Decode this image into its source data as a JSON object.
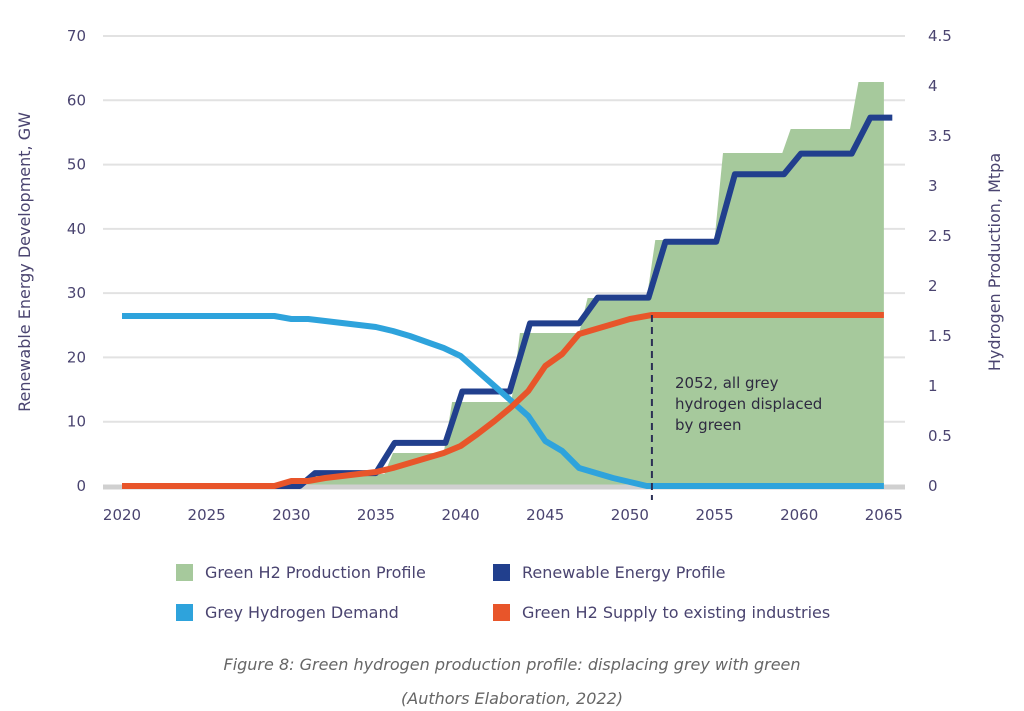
{
  "chart_data": {
    "type": "line",
    "left_axis": {
      "label": "Renewable Energy Development, GW",
      "range": [
        0,
        70
      ],
      "ticks": [
        0,
        10,
        20,
        30,
        40,
        50,
        60,
        70
      ]
    },
    "right_axis": {
      "label": "Hydrogen Production, Mtpa",
      "range": [
        0,
        4.5
      ],
      "ticks": [
        "0",
        "0.5",
        "1",
        "1.5",
        "2",
        "2.5",
        "3",
        "3.5",
        "4",
        "4.5"
      ]
    },
    "x_axis": {
      "ticks": [
        2020,
        2025,
        2030,
        2035,
        2040,
        2045,
        2050,
        2055,
        2060,
        2065
      ]
    },
    "grid": true,
    "legend_position": "bottom",
    "series": [
      {
        "name": "Green H2 Production Profile",
        "type": "area",
        "axis": "right",
        "color": "#a6c99c",
        "x": [
          2020,
          2030,
          2031,
          2031.5,
          2035.5,
          2036,
          2039,
          2039.5,
          2043,
          2043.5,
          2047,
          2047.5,
          2051,
          2051.5,
          2055,
          2055.5,
          2059,
          2059.5,
          2063,
          2063.5,
          2065
        ],
        "y": [
          0,
          0,
          0.05,
          0.12,
          0.12,
          0.33,
          0.33,
          0.84,
          0.84,
          1.53,
          1.53,
          1.88,
          1.88,
          2.46,
          2.46,
          3.33,
          3.33,
          3.57,
          3.57,
          4.04,
          4.04
        ]
      },
      {
        "name": "Renewable Energy Profile",
        "type": "line",
        "axis": "left",
        "color": "#213f8d",
        "x": [
          2020,
          2030.5,
          2031.4,
          2035,
          2036.1,
          2039.1,
          2040.1,
          2042.9,
          2044.1,
          2047,
          2048.1,
          2051.1,
          2052.1,
          2055.1,
          2056.2,
          2059.1,
          2060.1,
          2063.1,
          2064.2,
          2065.5
        ],
        "y": [
          0,
          0,
          2,
          2,
          6.7,
          6.7,
          14.7,
          14.7,
          25.3,
          25.3,
          29.3,
          29.3,
          38,
          38,
          48.5,
          48.5,
          51.7,
          51.7,
          57.3,
          57.3
        ]
      },
      {
        "name": "Grey Hydrogen Demand",
        "type": "line",
        "axis": "right",
        "color": "#2ea3dc",
        "x": [
          2020,
          2029,
          2030,
          2031,
          2032,
          2033,
          2034,
          2035,
          2036,
          2037,
          2038,
          2039,
          2040,
          2041,
          2042,
          2043,
          2044,
          2045,
          2046,
          2047,
          2048,
          2049,
          2050,
          2051,
          2065
        ],
        "y": [
          1.7,
          1.7,
          1.67,
          1.67,
          1.65,
          1.63,
          1.61,
          1.59,
          1.55,
          1.5,
          1.44,
          1.38,
          1.3,
          1.15,
          1.0,
          0.85,
          0.7,
          0.45,
          0.35,
          0.18,
          0.13,
          0.08,
          0.04,
          0,
          0
        ]
      },
      {
        "name": "Green H2 Supply to existing industries",
        "type": "line",
        "axis": "right",
        "color": "#e8552a",
        "x": [
          2020,
          2029,
          2030,
          2031,
          2032,
          2033,
          2034,
          2035,
          2036,
          2037,
          2038,
          2039,
          2040,
          2041,
          2042,
          2043,
          2044,
          2045,
          2046,
          2047,
          2048,
          2049,
          2050,
          2051.3,
          2065
        ],
        "y": [
          0,
          0,
          0.05,
          0.05,
          0.08,
          0.1,
          0.12,
          0.14,
          0.18,
          0.23,
          0.28,
          0.33,
          0.4,
          0.52,
          0.65,
          0.79,
          0.95,
          1.2,
          1.32,
          1.52,
          1.57,
          1.62,
          1.67,
          1.71,
          1.71
        ]
      }
    ],
    "annotation": {
      "x": 2051.3,
      "lines": [
        "2052, all grey",
        "hydrogen displaced",
        "by green"
      ]
    }
  },
  "caption": {
    "line1": "Figure 8: Green hydrogen production profile: displacing grey with green",
    "line2": "(Authors Elaboration, 2022)"
  }
}
